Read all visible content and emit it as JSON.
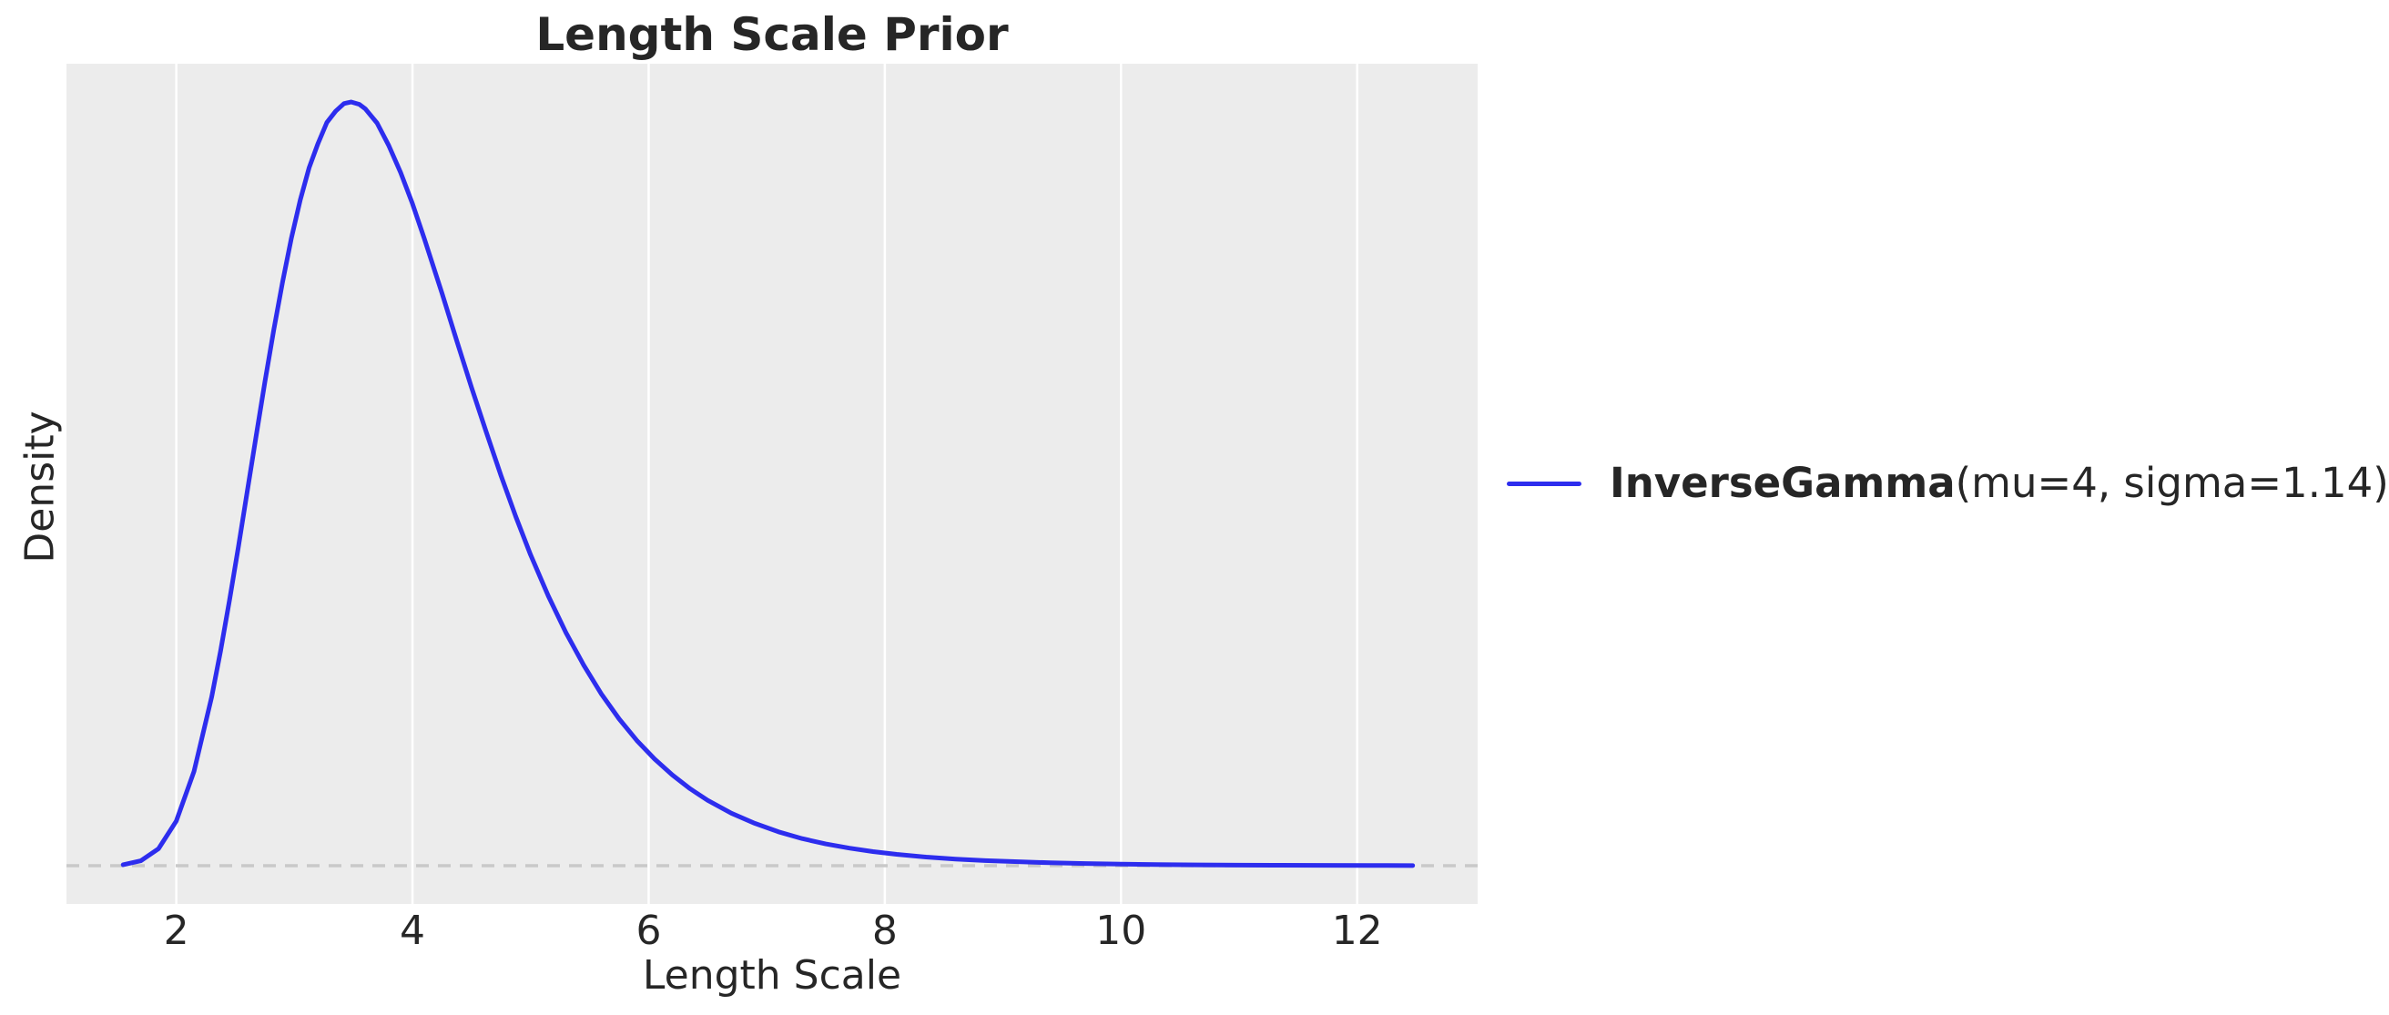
{
  "chart_data": {
    "type": "line",
    "title": "Length Scale Prior",
    "xlabel": "Length Scale",
    "ylabel": "Density",
    "xlim": [
      1.07,
      13.02
    ],
    "ylim": [
      -0.0209,
      0.4382
    ],
    "x_ticks": [
      2,
      4,
      6,
      8,
      10,
      12
    ],
    "y_ticks": [],
    "grid": {
      "orientation": "vertical",
      "color": "#ffffff",
      "background": "#ececec"
    },
    "zero_line": {
      "y": 0.0,
      "style": "dashed",
      "color": "#c9c9c9"
    },
    "legend_position": "right-outside",
    "series": [
      {
        "name": "InverseGamma(mu=4, sigma=1.14)",
        "name_bold_part": "InverseGamma",
        "name_regular_part": "(mu=4, sigma=1.14)",
        "color": "#2d2dee",
        "distribution": "InverseGamma",
        "params": {
          "mu": 4,
          "sigma": 1.14
        },
        "peak": {
          "x": 3.48,
          "density": 0.4173
        },
        "x": [
          1.55,
          1.7,
          1.85,
          2.0,
          2.15,
          2.3,
          2.375,
          2.45,
          2.525,
          2.6,
          2.675,
          2.75,
          2.825,
          2.9,
          2.975,
          3.05,
          3.125,
          3.2,
          3.275,
          3.35,
          3.42,
          3.48,
          3.55,
          3.6,
          3.7,
          3.8,
          3.9,
          4.0,
          4.1,
          4.25,
          4.375,
          4.5,
          4.625,
          4.75,
          4.875,
          5.0,
          5.15,
          5.3,
          5.45,
          5.6,
          5.75,
          5.9,
          6.05,
          6.2,
          6.35,
          6.5,
          6.7,
          6.9,
          7.1,
          7.3,
          7.5,
          7.7,
          7.9,
          8.1,
          8.35,
          8.6,
          8.85,
          9.1,
          9.4,
          9.7,
          10.0,
          10.3,
          10.65,
          11.0,
          11.35,
          11.7,
          12.1,
          12.47
        ],
        "y": [
          0.0005,
          0.0027,
          0.0093,
          0.0244,
          0.0515,
          0.0923,
          0.1173,
          0.1448,
          0.1738,
          0.2041,
          0.2343,
          0.2642,
          0.2926,
          0.3189,
          0.343,
          0.3638,
          0.3814,
          0.3946,
          0.4061,
          0.4123,
          0.4164,
          0.4173,
          0.416,
          0.4136,
          0.4058,
          0.3934,
          0.3787,
          0.3617,
          0.3427,
          0.3128,
          0.2868,
          0.2613,
          0.2369,
          0.2131,
          0.1907,
          0.1699,
          0.1474,
          0.1273,
          0.1096,
          0.0938,
          0.0802,
          0.0684,
          0.0583,
          0.0496,
          0.0421,
          0.0357,
          0.0287,
          0.0231,
          0.0185,
          0.0148,
          0.0119,
          0.0096,
          0.0077,
          0.0062,
          0.0047,
          0.0036,
          0.0028,
          0.0022,
          0.0016,
          0.0012,
          0.00086,
          0.00064,
          0.00045,
          0.00032,
          0.00023,
          0.00017,
          0.00012,
          8e-05
        ]
      }
    ]
  },
  "legend": {
    "label_bold": "InverseGamma",
    "label_rest": "(mu=4, sigma=1.14)"
  },
  "style": {
    "curve_color": "#2d2dee",
    "plot_bg": "#ececec",
    "grid_color": "#ffffff",
    "dashed_line_color": "#c9c9c9",
    "text_color": "#262626"
  }
}
